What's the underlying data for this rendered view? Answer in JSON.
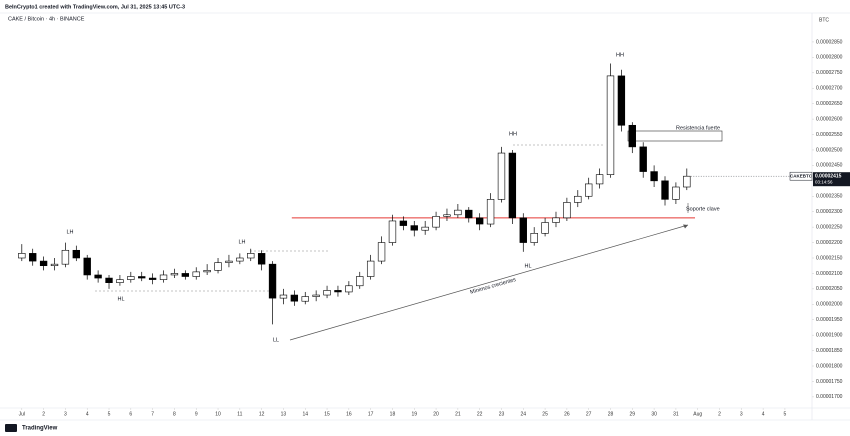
{
  "header": "BeInCrypto1 created with TradingView.com, Jul 31, 2025 13:45 UTC-3",
  "footer": "TradingView",
  "chart_data": {
    "type": "candlestick",
    "title": "CAKE / Bitcoin · 4h · BINANCE",
    "currency": "BTC",
    "symbol": "CAKEBTC",
    "countdown": "03:14:56",
    "last_price": {
      "value": 2.415e-05,
      "label": "0.00002415"
    },
    "up_color": "#ffffff",
    "down_color": "#000000",
    "wick_color": "#000000",
    "grid": false,
    "x": [
      1,
      1.5,
      2,
      2.5,
      3,
      3.5,
      4,
      4.5,
      5,
      5.5,
      6,
      6.5,
      7,
      7.5,
      8,
      8.5,
      9,
      9.5,
      10,
      10.5,
      11,
      11.5,
      12,
      12.5,
      13,
      13.5,
      14,
      14.5,
      15,
      15.5,
      16,
      16.5,
      17,
      17.5,
      18,
      18.5,
      19,
      19.5,
      20,
      20.5,
      21,
      21.5,
      22,
      22.5,
      23,
      23.5,
      24,
      24.5,
      25,
      25.5,
      26,
      26.5,
      27,
      27.5,
      28,
      28.5,
      29,
      29.5,
      30,
      30.5,
      31,
      31.5
    ],
    "open": [
      2.15e-05,
      2.165e-05,
      2.14e-05,
      2.125e-05,
      2.13e-05,
      2.175e-05,
      2.15e-05,
      2.095e-05,
      2.085e-05,
      2.07e-05,
      2.08e-05,
      2.09e-05,
      2.085e-05,
      2.08e-05,
      2.095e-05,
      2.1e-05,
      2.09e-05,
      2.105e-05,
      2.11e-05,
      2.135e-05,
      2.14e-05,
      2.15e-05,
      2.165e-05,
      2.13e-05,
      2.02e-05,
      2.03e-05,
      2.01e-05,
      2.025e-05,
      2.03e-05,
      2.045e-05,
      2.04e-05,
      2.06e-05,
      2.09e-05,
      2.14e-05,
      2.2e-05,
      2.27e-05,
      2.255e-05,
      2.24e-05,
      2.25e-05,
      2.285e-05,
      2.29e-05,
      2.305e-05,
      2.28e-05,
      2.26e-05,
      2.34e-05,
      2.49e-05,
      2.28e-05,
      2.2e-05,
      2.23e-05,
      2.265e-05,
      2.28e-05,
      2.33e-05,
      2.35e-05,
      2.39e-05,
      2.42e-05,
      2.74e-05,
      2.58e-05,
      2.51e-05,
      2.43e-05,
      2.4e-05,
      2.34e-05,
      2.38e-05
    ],
    "high": [
      2.195e-05,
      2.18e-05,
      2.155e-05,
      2.15e-05,
      2.2e-05,
      2.19e-05,
      2.16e-05,
      2.11e-05,
      2.095e-05,
      2.095e-05,
      2.105e-05,
      2.105e-05,
      2.1e-05,
      2.11e-05,
      2.115e-05,
      2.11e-05,
      2.12e-05,
      2.13e-05,
      2.15e-05,
      2.16e-05,
      2.165e-05,
      2.18e-05,
      2.175e-05,
      2.14e-05,
      2.05e-05,
      2.045e-05,
      2.04e-05,
      2.045e-05,
      2.06e-05,
      2.06e-05,
      2.075e-05,
      2.105e-05,
      2.16e-05,
      2.22e-05,
      2.29e-05,
      2.285e-05,
      2.27e-05,
      2.27e-05,
      2.3e-05,
      2.31e-05,
      2.325e-05,
      2.315e-05,
      2.295e-05,
      2.36e-05,
      2.51e-05,
      2.5e-05,
      2.295e-05,
      2.25e-05,
      2.28e-05,
      2.3e-05,
      2.345e-05,
      2.37e-05,
      2.41e-05,
      2.44e-05,
      2.78e-05,
      2.76e-05,
      2.59e-05,
      2.525e-05,
      2.45e-05,
      2.415e-05,
      2.395e-05,
      2.44e-05
    ],
    "low": [
      2.14e-05,
      2.125e-05,
      2.11e-05,
      2.11e-05,
      2.12e-05,
      2.14e-05,
      2.08e-05,
      2.07e-05,
      2.05e-05,
      2.06e-05,
      2.07e-05,
      2.075e-05,
      2.065e-05,
      2.07e-05,
      2.085e-05,
      2.08e-05,
      2.08e-05,
      2.095e-05,
      2.1e-05,
      2.12e-05,
      2.13e-05,
      2.14e-05,
      2.11e-05,
      1.935e-05,
      2e-05,
      1.995e-05,
      2e-05,
      2.01e-05,
      2.02e-05,
      2.025e-05,
      2.03e-05,
      2.05e-05,
      2.08e-05,
      2.13e-05,
      2.19e-05,
      2.24e-05,
      2.22e-05,
      2.225e-05,
      2.24e-05,
      2.27e-05,
      2.28e-05,
      2.265e-05,
      2.24e-05,
      2.25e-05,
      2.33e-05,
      2.26e-05,
      2.17e-05,
      2.19e-05,
      2.22e-05,
      2.25e-05,
      2.27e-05,
      2.315e-05,
      2.34e-05,
      2.375e-05,
      2.41e-05,
      2.56e-05,
      2.49e-05,
      2.41e-05,
      2.38e-05,
      2.32e-05,
      2.325e-05,
      2.37e-05
    ],
    "close": [
      2.165e-05,
      2.14e-05,
      2.125e-05,
      2.13e-05,
      2.175e-05,
      2.15e-05,
      2.095e-05,
      2.085e-05,
      2.07e-05,
      2.08e-05,
      2.09e-05,
      2.085e-05,
      2.08e-05,
      2.095e-05,
      2.1e-05,
      2.09e-05,
      2.105e-05,
      2.11e-05,
      2.135e-05,
      2.14e-05,
      2.15e-05,
      2.165e-05,
      2.13e-05,
      2.02e-05,
      2.03e-05,
      2.01e-05,
      2.025e-05,
      2.03e-05,
      2.045e-05,
      2.04e-05,
      2.06e-05,
      2.09e-05,
      2.14e-05,
      2.2e-05,
      2.27e-05,
      2.255e-05,
      2.24e-05,
      2.25e-05,
      2.285e-05,
      2.29e-05,
      2.305e-05,
      2.28e-05,
      2.26e-05,
      2.34e-05,
      2.49e-05,
      2.28e-05,
      2.2e-05,
      2.23e-05,
      2.265e-05,
      2.28e-05,
      2.33e-05,
      2.35e-05,
      2.39e-05,
      2.42e-05,
      2.74e-05,
      2.58e-05,
      2.51e-05,
      2.43e-05,
      2.4e-05,
      2.34e-05,
      2.38e-05,
      2.415e-05
    ],
    "hline": {
      "value": 2.28e-05,
      "color": "#e53935"
    },
    "annotations": [
      "LH",
      "HL",
      "LH",
      "LL",
      "HH",
      "HL",
      "HH",
      "Mínimos crecientes",
      "Resistencia fuerte",
      "Soporte clave"
    ],
    "xlim": [
      0,
      37.15
    ],
    "xticks": [
      {
        "value": 1,
        "label": "Jul"
      },
      2,
      3,
      4,
      5,
      6,
      7,
      8,
      9,
      10,
      11,
      12,
      13,
      14,
      15,
      16,
      17,
      18,
      19,
      20,
      21,
      22,
      23,
      24,
      25,
      26,
      27,
      28,
      29,
      30,
      31,
      {
        "value": 32,
        "label": "Aug"
      },
      {
        "value": 33,
        "label": "2"
      },
      {
        "value": 34,
        "label": "3"
      },
      {
        "value": 35,
        "label": "4"
      },
      {
        "value": 36,
        "label": "5"
      }
    ],
    "ylim": [
      1.664e-05,
      2.947e-05
    ],
    "yticks": [
      {
        "value": 1.7e-05,
        "label": "0.00001700"
      },
      {
        "value": 1.75e-05,
        "label": "0.00001750"
      },
      {
        "value": 1.8e-05,
        "label": "0.00001800"
      },
      {
        "value": 1.85e-05,
        "label": "0.00001850"
      },
      {
        "value": 1.9e-05,
        "label": "0.00001900"
      },
      {
        "value": 1.95e-05,
        "label": "0.00001950"
      },
      {
        "value": 2e-05,
        "label": "0.00002000"
      },
      {
        "value": 2.05e-05,
        "label": "0.00002050"
      },
      {
        "value": 2.1e-05,
        "label": "0.00002100"
      },
      {
        "value": 2.15e-05,
        "label": "0.00002150"
      },
      {
        "value": 2.2e-05,
        "label": "0.00002200"
      },
      {
        "value": 2.25e-05,
        "label": "0.00002250"
      },
      {
        "value": 2.3e-05,
        "label": "0.00002300"
      },
      {
        "value": 2.35e-05,
        "label": "0.00002350"
      },
      {
        "value": 2.4e-05,
        "label": "0.00002400"
      },
      {
        "value": 2.45e-05,
        "label": "0.00002450"
      },
      {
        "value": 2.5e-05,
        "label": "0.00002500"
      },
      {
        "value": 2.55e-05,
        "label": "0.00002550"
      },
      {
        "value": 2.6e-05,
        "label": "0.00002600"
      },
      {
        "value": 2.65e-05,
        "label": "0.00002650"
      },
      {
        "value": 2.7e-05,
        "label": "0.00002700"
      },
      {
        "value": 2.75e-05,
        "label": "0.00002750"
      },
      {
        "value": 2.8e-05,
        "label": "0.00002800"
      },
      {
        "value": 2.85e-05,
        "label": "0.00002850"
      }
    ]
  }
}
